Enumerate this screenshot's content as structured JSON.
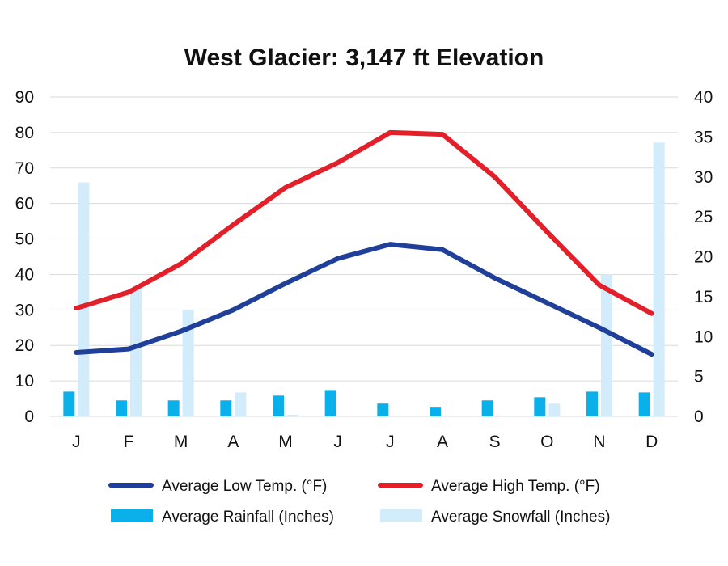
{
  "chart_data": {
    "type": "bar+line",
    "title": "West Glacier: 3,147 ft Elevation",
    "categories": [
      "J",
      "F",
      "M",
      "A",
      "M",
      "J",
      "J",
      "A",
      "S",
      "O",
      "N",
      "D"
    ],
    "y_left": {
      "min": 0,
      "max": 90,
      "ticks": [
        0,
        10,
        20,
        30,
        40,
        50,
        60,
        70,
        80,
        90
      ]
    },
    "y_right": {
      "min": 0,
      "max": 40,
      "ticks": [
        0,
        5,
        10,
        15,
        20,
        25,
        30,
        35,
        40
      ]
    },
    "grid": true,
    "legend_position": "bottom",
    "series": [
      {
        "name": "Average Low Temp. (°F)",
        "kind": "line",
        "axis": "left",
        "color": "#1f3f99",
        "values": [
          18,
          19,
          24,
          30,
          37.5,
          44.5,
          48.5,
          47,
          39,
          32,
          25,
          17.5
        ]
      },
      {
        "name": "Average High Temp. (°F)",
        "kind": "line",
        "axis": "left",
        "color": "#e3202a",
        "values": [
          30.5,
          35,
          43,
          54,
          64.5,
          71.5,
          80,
          79.5,
          67.5,
          52,
          37,
          29
        ]
      },
      {
        "name": "Average Rainfall (Inches)",
        "kind": "bar",
        "axis": "right",
        "color": "#0ab0ea",
        "values": [
          3.1,
          2.0,
          2.0,
          2.0,
          2.6,
          3.3,
          1.6,
          1.2,
          2.0,
          2.4,
          3.1,
          3.0
        ]
      },
      {
        "name": "Average Snowfall (Inches)",
        "kind": "bar",
        "axis": "right",
        "color": "#d3ecfb",
        "values": [
          29.3,
          16.0,
          13.3,
          3.0,
          0.2,
          0,
          0,
          0,
          0,
          1.6,
          17.8,
          34.3
        ]
      }
    ]
  }
}
